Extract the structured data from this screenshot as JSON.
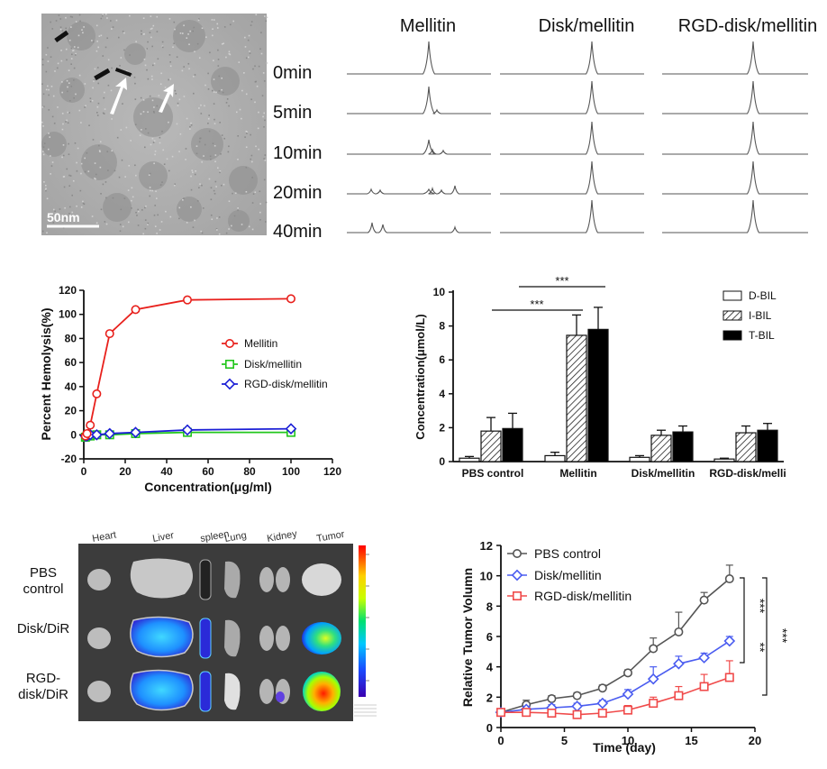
{
  "tem": {
    "scale_label": "50nm"
  },
  "chromatograms": {
    "columns": [
      "Mellitin",
      "Disk/mellitin",
      "RGD-disk/mellitin"
    ],
    "rows": [
      "0min",
      "5min",
      "10min",
      "20min",
      "40min"
    ]
  },
  "colors": {
    "mellitin": "#e8201c",
    "disk": "#22c61c",
    "rgd": "#1b1fd6",
    "pbs": "#555555",
    "rgd_tumor": "#f04a4a",
    "disk_tumor": "#4a5cf0"
  },
  "chart_data": [
    {
      "type": "line",
      "ylabel": "Percent Hemolysis(%)",
      "xlabel": "Concentration(μg/ml)",
      "xlim": [
        0,
        120
      ],
      "ylim": [
        -20,
        120
      ],
      "xticks": [
        "0",
        "20",
        "40",
        "60",
        "80",
        "100",
        "120"
      ],
      "yticks": [
        "-20",
        "0",
        "20",
        "40",
        "60",
        "80",
        "100",
        "120"
      ],
      "series": [
        {
          "name": "Mellitin",
          "x": [
            0.78,
            1.56,
            3.13,
            6.25,
            12.5,
            25,
            50,
            100
          ],
          "y": [
            -1,
            1,
            8,
            34,
            84,
            104,
            112,
            113
          ]
        },
        {
          "name": "Disk/mellitin",
          "x": [
            0.78,
            1.56,
            3.13,
            6.25,
            12.5,
            25,
            50,
            100
          ],
          "y": [
            -2,
            -1,
            -1,
            0,
            0,
            1,
            2,
            2
          ]
        },
        {
          "name": "RGD-disk/mellitin",
          "x": [
            0.78,
            1.56,
            3.13,
            6.25,
            12.5,
            25,
            50,
            100
          ],
          "y": [
            -1,
            -1,
            0,
            0,
            1,
            2,
            4,
            5
          ]
        }
      ],
      "legend_position": "right"
    },
    {
      "type": "bar",
      "ylabel": "Concentration(μmol/L)",
      "ylim": [
        0,
        10
      ],
      "yticks": [
        "0",
        "2",
        "4",
        "6",
        "8",
        "10"
      ],
      "categories": [
        "PBS control",
        "Mellitin",
        "Disk/mellitin",
        "RGD-disk/melli"
      ],
      "series": [
        {
          "name": "D-BIL",
          "values": [
            0.2,
            0.35,
            0.25,
            0.15
          ],
          "errors": [
            0.1,
            0.2,
            0.1,
            0.05
          ]
        },
        {
          "name": "I-BIL",
          "values": [
            1.8,
            7.45,
            1.55,
            1.7
          ],
          "errors": [
            0.8,
            1.2,
            0.3,
            0.4
          ]
        },
        {
          "name": "T-BIL",
          "values": [
            1.95,
            7.8,
            1.75,
            1.85
          ],
          "errors": [
            0.9,
            1.3,
            0.35,
            0.4
          ]
        }
      ],
      "significance": [
        "***",
        "***"
      ],
      "legend_position": "top-right"
    },
    {
      "type": "line",
      "ylabel": "Relative Tumor Volumn",
      "xlabel": "Time (day)",
      "xlim": [
        0,
        20
      ],
      "ylim": [
        0,
        12
      ],
      "xticks": [
        "0",
        "5",
        "10",
        "15",
        "20"
      ],
      "yticks": [
        "0",
        "2",
        "4",
        "6",
        "8",
        "10",
        "12"
      ],
      "series": [
        {
          "name": "PBS control",
          "x": [
            0,
            2,
            4,
            6,
            8,
            10,
            12,
            14,
            16,
            18
          ],
          "y": [
            1,
            1.5,
            1.9,
            2.1,
            2.6,
            3.6,
            5.2,
            6.3,
            8.4,
            9.8
          ],
          "errors": [
            0.1,
            0.3,
            0.2,
            0.2,
            0.2,
            0.2,
            0.7,
            1.3,
            0.5,
            0.9
          ]
        },
        {
          "name": "Disk/mellitin",
          "x": [
            0,
            2,
            4,
            6,
            8,
            10,
            12,
            14,
            16,
            18
          ],
          "y": [
            1,
            1.2,
            1.3,
            1.4,
            1.6,
            2.2,
            3.2,
            4.2,
            4.6,
            5.7
          ],
          "errors": [
            0.1,
            0.2,
            0.2,
            0.2,
            0.2,
            0.3,
            0.8,
            0.5,
            0.3,
            0.3
          ]
        },
        {
          "name": "RGD-disk/mellitin",
          "x": [
            0,
            2,
            4,
            6,
            8,
            10,
            12,
            14,
            16,
            18
          ],
          "y": [
            1,
            1.0,
            0.95,
            0.85,
            0.95,
            1.15,
            1.6,
            2.1,
            2.7,
            3.3
          ],
          "errors": [
            0.1,
            0.2,
            0.2,
            0.2,
            0.2,
            0.3,
            0.4,
            0.6,
            0.8,
            1.1
          ]
        }
      ],
      "significance": [
        "***",
        "***",
        "**"
      ],
      "legend_position": "top-left"
    }
  ],
  "imaging": {
    "organs": [
      "Heart",
      "Liver",
      "spleen",
      "Lung",
      "Kidney",
      "Tumor"
    ],
    "groups": [
      "PBS\ncontrol",
      "Disk/DiR",
      "RGD-\ndisk/DiR"
    ]
  }
}
